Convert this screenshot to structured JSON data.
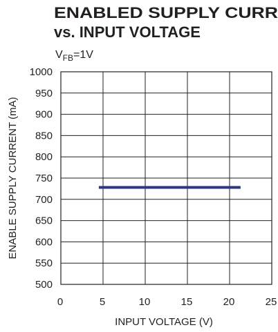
{
  "chart_data": {
    "type": "line",
    "title": [
      "ENABLED SUPPLY CURR",
      "vs. INPUT VOLTAGE"
    ],
    "subtitle": {
      "main": "V",
      "sub": "FB",
      "rest": "=1V"
    },
    "x_label": "INPUT VOLTAGE (V)",
    "y_label": "ENABLE SUPPLY CURRENT (mA)",
    "xlim": [
      0,
      25
    ],
    "xticks": [
      0,
      5,
      10,
      15,
      20,
      25
    ],
    "ylim": [
      500,
      1000
    ],
    "yticks": [
      500,
      550,
      600,
      650,
      700,
      750,
      800,
      850,
      900,
      950,
      1000
    ],
    "grid": true,
    "series": [
      {
        "name": "VFB=1V",
        "color": "#2e3580",
        "x": [
          4.5,
          21.3
        ],
        "values": [
          728,
          728
        ]
      }
    ]
  }
}
